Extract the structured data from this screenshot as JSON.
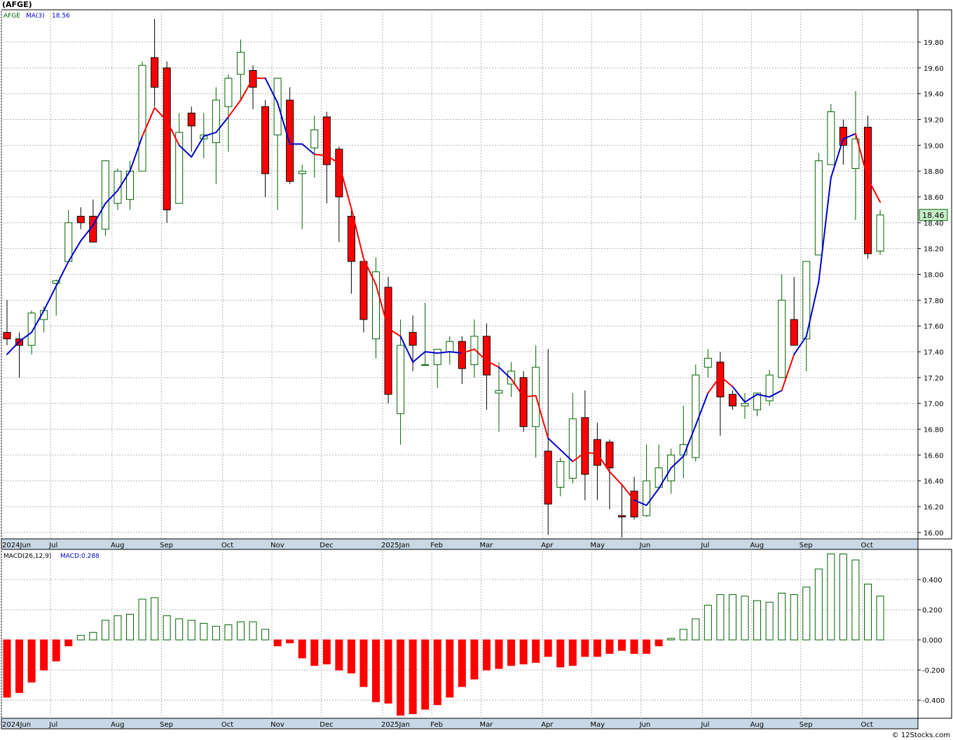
{
  "title": "(AFGE)",
  "credit": "© 12Stocks.com",
  "colors": {
    "up_candle": "#006400",
    "down_candle": "#ff0000",
    "ma_up": "#0000cc",
    "ma_down": "#ff0000",
    "macd_up": "#006400",
    "macd_down": "#ff0000",
    "grid": "#b4b4b4",
    "axis_band": "#c8d8e6",
    "last_price_bg": "#c8f0c8"
  },
  "chart_data": [
    {
      "type": "candlestick",
      "name": "price",
      "legend": {
        "symbol": "AFGE",
        "ma_label": "MA(3)",
        "ma_value": "18.56"
      },
      "last_price_label": "18.46",
      "ylim": [
        15.95,
        20.05
      ],
      "yticks": [
        "16.00",
        "16.20",
        "16.40",
        "16.60",
        "16.80",
        "17.00",
        "17.20",
        "17.40",
        "17.60",
        "17.80",
        "18.00",
        "18.20",
        "18.40",
        "18.60",
        "18.80",
        "19.00",
        "19.20",
        "19.40",
        "19.60",
        "19.80"
      ],
      "xticks": [
        {
          "label": "2024Jun",
          "index": 0
        },
        {
          "label": "Jul",
          "index": 4
        },
        {
          "label": "Aug",
          "index": 9
        },
        {
          "label": "Sep",
          "index": 13
        },
        {
          "label": "Oct",
          "index": 18
        },
        {
          "label": "Nov",
          "index": 22
        },
        {
          "label": "Dec",
          "index": 26
        },
        {
          "label": "2025Jan",
          "index": 31
        },
        {
          "label": "Feb",
          "index": 35
        },
        {
          "label": "Mar",
          "index": 39
        },
        {
          "label": "Apr",
          "index": 44
        },
        {
          "label": "May",
          "index": 48
        },
        {
          "label": "Jun",
          "index": 52
        },
        {
          "label": "Jul",
          "index": 57
        },
        {
          "label": "Aug",
          "index": 61
        },
        {
          "label": "Sep",
          "index": 65
        },
        {
          "label": "Oct",
          "index": 70
        }
      ],
      "ohlc": [
        [
          17.55,
          17.8,
          17.45,
          17.5
        ],
        [
          17.5,
          17.55,
          17.2,
          17.45
        ],
        [
          17.45,
          17.72,
          17.38,
          17.7
        ],
        [
          17.65,
          17.75,
          17.55,
          17.72
        ],
        [
          17.93,
          17.96,
          17.68,
          17.95
        ],
        [
          18.1,
          18.5,
          18.1,
          18.4
        ],
        [
          18.45,
          18.52,
          18.35,
          18.4
        ],
        [
          18.45,
          18.58,
          18.25,
          18.25
        ],
        [
          18.35,
          18.88,
          18.3,
          18.88
        ],
        [
          18.55,
          18.82,
          18.5,
          18.8
        ],
        [
          18.58,
          18.88,
          18.5,
          18.8
        ],
        [
          18.8,
          19.65,
          18.8,
          19.62
        ],
        [
          19.68,
          19.98,
          19.3,
          19.45
        ],
        [
          19.6,
          19.65,
          18.4,
          18.5
        ],
        [
          18.55,
          19.25,
          18.55,
          19.1
        ],
        [
          19.25,
          19.3,
          18.95,
          19.15
        ],
        [
          19.05,
          19.25,
          18.9,
          19.08
        ],
        [
          19.02,
          19.45,
          18.7,
          19.35
        ],
        [
          19.3,
          19.55,
          18.95,
          19.52
        ],
        [
          19.55,
          19.82,
          19.35,
          19.72
        ],
        [
          19.58,
          19.62,
          19.28,
          19.45
        ],
        [
          19.3,
          19.35,
          18.6,
          18.78
        ],
        [
          19.08,
          19.52,
          18.5,
          19.52
        ],
        [
          19.35,
          19.45,
          18.7,
          18.72
        ],
        [
          18.78,
          18.85,
          18.35,
          18.8
        ],
        [
          18.98,
          19.23,
          18.75,
          19.12
        ],
        [
          19.22,
          19.26,
          18.55,
          18.85
        ],
        [
          18.97,
          18.99,
          18.25,
          18.6
        ],
        [
          18.45,
          18.5,
          17.85,
          18.1
        ],
        [
          18.1,
          18.1,
          17.55,
          17.65
        ],
        [
          17.5,
          18.13,
          17.35,
          18.02
        ],
        [
          17.9,
          17.98,
          17.0,
          17.07
        ],
        [
          16.92,
          17.65,
          16.68,
          17.45
        ],
        [
          17.55,
          17.68,
          17.25,
          17.45
        ],
        [
          17.3,
          17.78,
          17.3,
          17.3
        ],
        [
          17.3,
          17.42,
          17.12,
          17.42
        ],
        [
          17.4,
          17.52,
          17.3,
          17.48
        ],
        [
          17.48,
          17.52,
          17.15,
          17.27
        ],
        [
          17.3,
          17.65,
          17.2,
          17.52
        ],
        [
          17.52,
          17.62,
          16.95,
          17.22
        ],
        [
          17.08,
          17.32,
          16.78,
          17.1
        ],
        [
          17.15,
          17.32,
          17.05,
          17.25
        ],
        [
          17.2,
          17.25,
          16.78,
          16.82
        ],
        [
          16.82,
          17.45,
          16.58,
          17.28
        ],
        [
          16.63,
          17.42,
          15.98,
          16.22
        ],
        [
          16.35,
          16.58,
          16.28,
          16.55
        ],
        [
          16.42,
          17.08,
          16.38,
          16.88
        ],
        [
          16.89,
          17.1,
          16.25,
          16.45
        ],
        [
          16.72,
          16.85,
          16.25,
          16.52
        ],
        [
          16.7,
          16.72,
          16.18,
          16.5
        ],
        [
          16.13,
          16.37,
          15.96,
          16.12
        ],
        [
          16.32,
          16.43,
          16.1,
          16.12
        ],
        [
          16.13,
          16.68,
          16.12,
          16.4
        ],
        [
          16.35,
          16.68,
          16.35,
          16.5
        ],
        [
          16.4,
          16.65,
          16.3,
          16.6
        ],
        [
          16.6,
          16.98,
          16.42,
          16.68
        ],
        [
          16.58,
          17.3,
          16.55,
          17.22
        ],
        [
          17.28,
          17.42,
          17.2,
          17.35
        ],
        [
          17.32,
          17.4,
          16.75,
          17.05
        ],
        [
          17.07,
          17.1,
          16.95,
          16.98
        ],
        [
          16.98,
          17.08,
          16.88,
          17.0
        ],
        [
          16.95,
          17.08,
          16.9,
          17.08
        ],
        [
          17.02,
          17.26,
          16.98,
          17.22
        ],
        [
          17.2,
          18.0,
          17.2,
          17.8
        ],
        [
          17.65,
          17.98,
          17.45,
          17.45
        ],
        [
          17.5,
          18.1,
          17.25,
          18.1
        ],
        [
          18.15,
          18.94,
          18.15,
          18.88
        ],
        [
          18.85,
          19.32,
          18.85,
          19.26
        ],
        [
          19.14,
          19.2,
          18.85,
          19.0
        ],
        [
          18.82,
          19.42,
          18.42,
          19.05
        ],
        [
          19.14,
          19.23,
          18.12,
          18.16
        ],
        [
          18.18,
          18.5,
          18.15,
          18.46
        ]
      ],
      "ma": [
        17.38,
        17.48,
        17.55,
        17.72,
        17.91,
        18.1,
        18.26,
        18.38,
        18.55,
        18.65,
        18.8,
        19.07,
        19.29,
        19.19,
        19.0,
        18.91,
        19.07,
        19.1,
        19.22,
        19.35,
        19.52,
        19.52,
        19.33,
        19.01,
        19.01,
        18.93,
        18.92,
        18.86,
        18.51,
        18.12,
        17.92,
        17.58,
        17.52,
        17.32,
        17.4,
        17.39,
        17.4,
        17.39,
        17.42,
        17.33,
        17.28,
        17.19,
        17.05,
        17.06,
        16.73,
        16.64,
        16.55,
        16.62,
        16.61,
        16.47,
        16.37,
        16.25,
        16.21,
        16.34,
        16.5,
        16.59,
        16.83,
        17.08,
        17.21,
        17.13,
        17.01,
        17.07,
        17.05,
        17.1,
        17.38,
        17.52,
        17.94,
        18.75,
        19.05,
        19.09,
        18.74,
        18.56
      ],
      "ma_color": [
        "up",
        "up",
        "up",
        "up",
        "up",
        "up",
        "up",
        "up",
        "up",
        "up",
        "up",
        "up",
        "down",
        "down",
        "down",
        "up",
        "up",
        "up",
        "up",
        "down",
        "down",
        "down",
        "up",
        "up",
        "up",
        "up",
        "down",
        "down",
        "down",
        "down",
        "down",
        "down",
        "down",
        "up",
        "up",
        "up",
        "up",
        "up",
        "down",
        "down",
        "down",
        "up",
        "down",
        "down",
        "down",
        "up",
        "up",
        "down",
        "down",
        "down",
        "down",
        "down",
        "up",
        "up",
        "up",
        "up",
        "up",
        "up",
        "down",
        "down",
        "up",
        "up",
        "up",
        "up",
        "down",
        "up",
        "up",
        "up",
        "up",
        "up",
        "down",
        "down"
      ]
    },
    {
      "type": "bar",
      "name": "macd",
      "legend": {
        "label": "MACD(26,12,9)",
        "value_label": "MACD:0.288"
      },
      "ylim": [
        -0.52,
        0.6
      ],
      "yticks": [
        "-0.400",
        "-0.200",
        "0.000",
        "0.200",
        "0.400"
      ],
      "values": [
        -0.38,
        -0.35,
        -0.28,
        -0.2,
        -0.14,
        -0.04,
        0.03,
        0.05,
        0.13,
        0.16,
        0.17,
        0.27,
        0.28,
        0.16,
        0.14,
        0.13,
        0.11,
        0.09,
        0.1,
        0.12,
        0.12,
        0.07,
        -0.04,
        -0.02,
        -0.12,
        -0.17,
        -0.16,
        -0.2,
        -0.22,
        -0.31,
        -0.41,
        -0.42,
        -0.5,
        -0.49,
        -0.46,
        -0.43,
        -0.38,
        -0.31,
        -0.26,
        -0.2,
        -0.19,
        -0.17,
        -0.16,
        -0.15,
        -0.11,
        -0.18,
        -0.17,
        -0.11,
        -0.11,
        -0.09,
        -0.07,
        -0.09,
        -0.09,
        -0.04,
        0.01,
        0.07,
        0.14,
        0.23,
        0.3,
        0.3,
        0.29,
        0.26,
        0.25,
        0.31,
        0.3,
        0.35,
        0.47,
        0.57,
        0.57,
        0.53,
        0.37,
        0.29
      ]
    }
  ]
}
